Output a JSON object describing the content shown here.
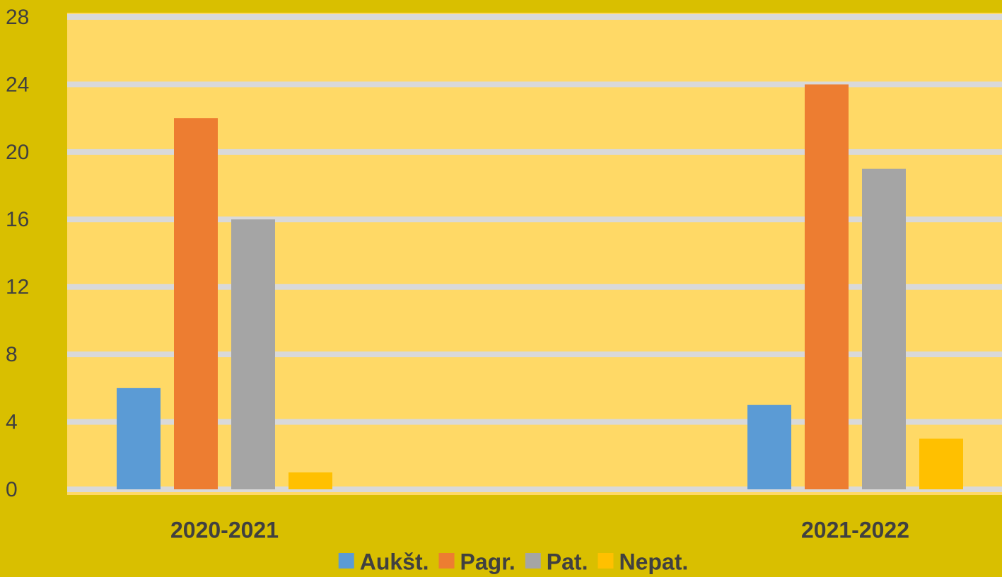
{
  "chart_data": {
    "type": "bar",
    "categories": [
      "2020-2021",
      "2021-2022"
    ],
    "series": [
      {
        "name": "Aukšt.",
        "color": "#5b9bd5",
        "values": [
          6,
          5
        ]
      },
      {
        "name": "Pagr.",
        "color": "#ed7d31",
        "values": [
          22,
          24
        ]
      },
      {
        "name": "Pat.",
        "color": "#a5a5a5",
        "values": [
          16,
          19
        ]
      },
      {
        "name": "Nepat.",
        "color": "#ffc000",
        "values": [
          1,
          3
        ]
      }
    ],
    "ylim": [
      0,
      28
    ],
    "yticks": [
      0,
      4,
      8,
      12,
      16,
      20,
      24,
      28
    ],
    "grid": true,
    "legend": "bottom"
  }
}
